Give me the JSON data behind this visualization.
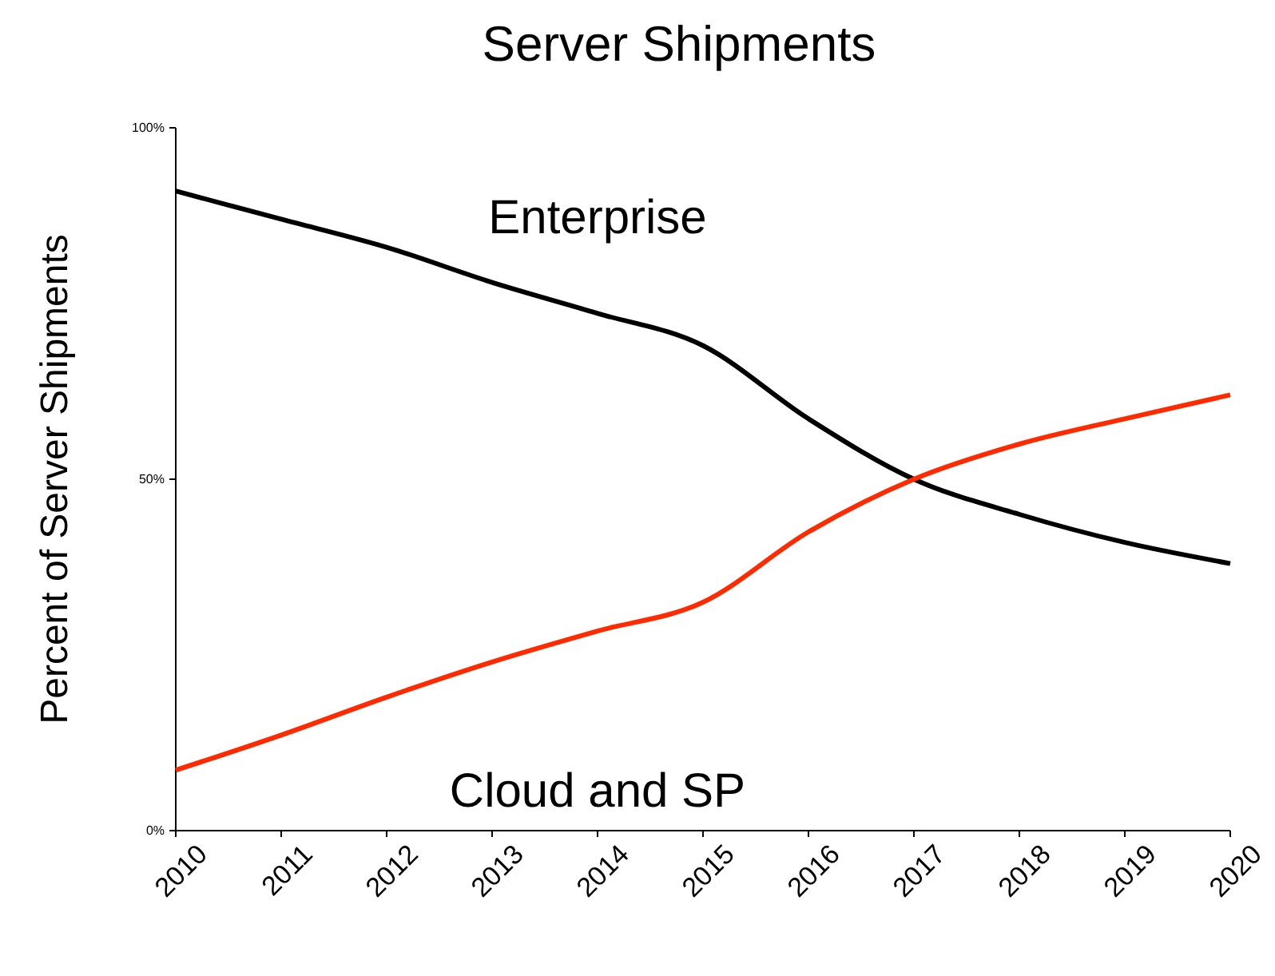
{
  "chart_data": {
    "type": "line",
    "title": "Server Shipments",
    "ylabel": "Percent of Server Shipments",
    "x": [
      2010,
      2011,
      2012,
      2013,
      2014,
      2015,
      2016,
      2017,
      2018,
      2019,
      2020
    ],
    "xlim": [
      2010,
      2020
    ],
    "xticks": [
      2010,
      2011,
      2012,
      2013,
      2014,
      2015,
      2016,
      2017,
      2018,
      2019,
      2020
    ],
    "ylim": [
      0,
      100
    ],
    "yticks": [
      {
        "value": 0,
        "label": "0%"
      },
      {
        "value": 50,
        "label": "50%"
      },
      {
        "value": 100,
        "label": "100%"
      }
    ],
    "grid": false,
    "legend": false,
    "marker": "none",
    "line_style": "solid",
    "series": [
      {
        "name": "Enterprise",
        "color": "#000000",
        "values": [
          91,
          87,
          83,
          78,
          73.6,
          69,
          58.6,
          50,
          45,
          41,
          38
        ]
      },
      {
        "name": "Cloud and SP",
        "color": "#ff2a00",
        "values": [
          8.6,
          13.6,
          19,
          24,
          28.4,
          32.5,
          42.5,
          50,
          55,
          58.6,
          62
        ]
      }
    ]
  }
}
